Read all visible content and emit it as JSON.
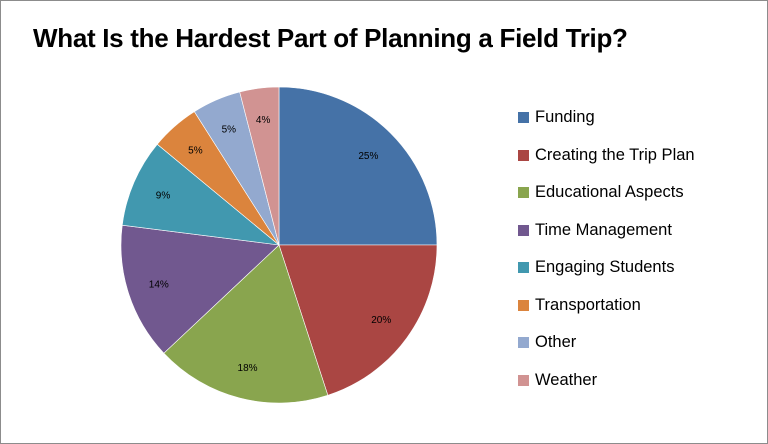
{
  "chart_data": {
    "type": "pie",
    "title": "What Is the Hardest Part of Planning a Field Trip?",
    "categories": [
      "Funding",
      "Creating the Trip Plan",
      "Educational Aspects",
      "Time Management",
      "Engaging Students",
      "Transportation",
      "Other",
      "Weather"
    ],
    "values": [
      25,
      20,
      18,
      14,
      9,
      5,
      5,
      4
    ],
    "labels": [
      "25%",
      "20%",
      "18%",
      "14%",
      "9%",
      "5%",
      "5%",
      "4%"
    ],
    "colors": [
      "#4572A7",
      "#AA4643",
      "#89A54E",
      "#71588F",
      "#4198AF",
      "#DB843D",
      "#93A9CF",
      "#D19392"
    ],
    "legend_position": "right",
    "start_angle": "12 o'clock, clockwise"
  }
}
